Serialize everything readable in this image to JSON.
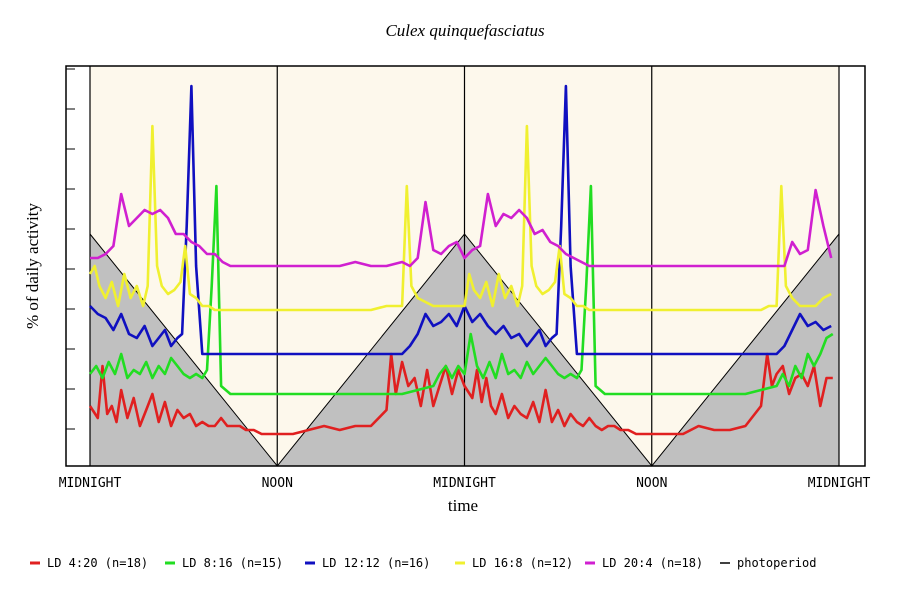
{
  "chart_data": {
    "type": "line",
    "title": "Culex quinquefasciatus",
    "xlabel": "time",
    "ylabel": "% of daily activity",
    "x_tick_labels": [
      "MIDNIGHT",
      "NOON",
      "MIDNIGHT",
      "NOON",
      "MIDNIGHT"
    ],
    "x_ticks": [
      0,
      12,
      24,
      36,
      48
    ],
    "xlim": [
      0,
      48
    ],
    "ylim": [
      0,
      10
    ],
    "y_tick_count": 10,
    "grid": false,
    "legend_position": "bottom",
    "colors": {
      "photophase": "#fdf8ec",
      "scotophase": "#c0c0c0",
      "plot_outer": "#ffffff"
    },
    "photoperiod": {
      "name": "photoperiod",
      "color": "#000000",
      "x": [
        0,
        12,
        24,
        36,
        48
      ],
      "values": [
        5.8,
        0,
        5.8,
        0,
        5.8
      ]
    },
    "series": [
      {
        "name": "LD 4:20 (n=18)",
        "color": "#e02020",
        "x": [
          0,
          0.5,
          0.8,
          1.1,
          1.4,
          1.7,
          2,
          2.4,
          2.8,
          3.2,
          3.6,
          4,
          4.4,
          4.8,
          5.2,
          5.6,
          6,
          6.4,
          6.8,
          7.2,
          7.6,
          8,
          8.4,
          8.8,
          9.2,
          9.6,
          10,
          10.5,
          11,
          11.5,
          12,
          12.5,
          13,
          14,
          15,
          16,
          17,
          18,
          19,
          19.3,
          19.6,
          20,
          20.4,
          20.8,
          21.2,
          21.6,
          22,
          22.4,
          22.8,
          23.2,
          23.6,
          24,
          24.5,
          24.8,
          25.1,
          25.4,
          25.7,
          26,
          26.4,
          26.8,
          27.2,
          27.6,
          28,
          28.4,
          28.8,
          29.2,
          29.6,
          30,
          30.4,
          30.8,
          31.2,
          31.6,
          32,
          32.4,
          32.8,
          33.2,
          33.6,
          34,
          34.5,
          35,
          35.5,
          36,
          37,
          38,
          39,
          40,
          41,
          42,
          43,
          43.4,
          43.7,
          44,
          44.4,
          44.8,
          45.2,
          45.6,
          46,
          46.4,
          46.8,
          47.2,
          47.6
        ],
        "values": [
          1.5,
          1.2,
          2.5,
          1.3,
          1.5,
          1.1,
          1.9,
          1.2,
          1.7,
          1.0,
          1.4,
          1.8,
          1.1,
          1.6,
          1.0,
          1.4,
          1.2,
          1.3,
          1.0,
          1.1,
          1.0,
          1.0,
          1.2,
          1.0,
          1.0,
          1.0,
          0.9,
          0.9,
          0.8,
          0.8,
          0.8,
          0.8,
          0.8,
          0.9,
          1.0,
          0.9,
          1.0,
          1.0,
          1.4,
          2.8,
          1.8,
          2.6,
          2.0,
          2.2,
          1.5,
          2.4,
          1.5,
          2.0,
          2.5,
          1.8,
          2.4,
          2.0,
          1.7,
          2.4,
          1.6,
          2.2,
          1.5,
          1.3,
          1.8,
          1.2,
          1.5,
          1.3,
          1.2,
          1.6,
          1.1,
          1.9,
          1.1,
          1.4,
          1.0,
          1.3,
          1.1,
          1.0,
          1.2,
          1.0,
          0.9,
          1.0,
          1.0,
          0.9,
          0.9,
          0.8,
          0.8,
          0.8,
          0.8,
          0.8,
          1.0,
          0.9,
          0.9,
          1.0,
          1.5,
          2.8,
          2.0,
          2.3,
          2.5,
          1.8,
          2.2,
          2.3,
          2.0,
          2.5,
          1.5,
          2.2,
          2.2
        ]
      },
      {
        "name": "LD 8:16 (n=15)",
        "color": "#22dd22",
        "x": [
          0,
          0.4,
          0.8,
          1.2,
          1.6,
          2,
          2.4,
          2.8,
          3.2,
          3.6,
          4,
          4.4,
          4.8,
          5.2,
          5.6,
          6,
          6.4,
          6.8,
          7.2,
          7.5,
          7.8,
          8.1,
          8.4,
          9,
          10,
          11,
          12,
          13,
          14,
          15,
          16,
          17,
          18,
          19,
          20,
          21,
          22,
          22.4,
          22.8,
          23.2,
          23.6,
          24,
          24.4,
          24.8,
          25.2,
          25.6,
          26,
          26.4,
          26.8,
          27.2,
          27.6,
          28,
          28.4,
          28.8,
          29.2,
          29.6,
          30,
          30.4,
          30.8,
          31.2,
          31.5,
          31.8,
          32.1,
          32.4,
          33,
          34,
          35,
          36,
          37,
          38,
          39,
          40,
          41,
          42,
          43,
          44,
          44.4,
          44.8,
          45.2,
          45.6,
          46,
          46.4,
          46.8,
          47.2,
          47.6
        ],
        "values": [
          2.3,
          2.5,
          2.2,
          2.6,
          2.3,
          2.8,
          2.2,
          2.4,
          2.3,
          2.6,
          2.2,
          2.5,
          2.3,
          2.7,
          2.5,
          2.3,
          2.2,
          2.3,
          2.2,
          2.4,
          4.5,
          7.0,
          2.0,
          1.8,
          1.8,
          1.8,
          1.8,
          1.8,
          1.8,
          1.8,
          1.8,
          1.8,
          1.8,
          1.8,
          1.8,
          1.9,
          2.0,
          2.3,
          2.5,
          2.2,
          2.5,
          2.3,
          3.3,
          2.5,
          2.2,
          2.6,
          2.2,
          2.8,
          2.3,
          2.4,
          2.2,
          2.6,
          2.3,
          2.5,
          2.7,
          2.5,
          2.3,
          2.2,
          2.3,
          2.2,
          2.4,
          4.5,
          7.0,
          2.0,
          1.8,
          1.8,
          1.8,
          1.8,
          1.8,
          1.8,
          1.8,
          1.8,
          1.8,
          1.8,
          1.9,
          2.0,
          2.3,
          2.0,
          2.5,
          2.2,
          2.8,
          2.5,
          2.8,
          3.2,
          3.3
        ]
      },
      {
        "name": "LD 12:12 (n=16)",
        "color": "#1010c0",
        "x": [
          0,
          0.5,
          1,
          1.5,
          2,
          2.5,
          3,
          3.5,
          4,
          4.4,
          4.8,
          5.2,
          5.6,
          5.9,
          6.2,
          6.5,
          6.8,
          7.2,
          8,
          9,
          10,
          11,
          12,
          13,
          14,
          15,
          16,
          17,
          18,
          19,
          20,
          20.5,
          21,
          21.5,
          22,
          22.5,
          23,
          23.5,
          24,
          24.5,
          25,
          25.5,
          26,
          26.5,
          27,
          27.5,
          28,
          28.4,
          28.8,
          29.2,
          29.6,
          29.9,
          30.2,
          30.5,
          30.8,
          31.2,
          32,
          33,
          34,
          35,
          36,
          37,
          38,
          39,
          40,
          41,
          42,
          42.5,
          43,
          43.5,
          44,
          44.5,
          45,
          45.5,
          46,
          46.5,
          47,
          47.5
        ],
        "values": [
          4.0,
          3.8,
          3.7,
          3.4,
          3.8,
          3.3,
          3.2,
          3.5,
          3.0,
          3.2,
          3.4,
          3.0,
          3.2,
          3.3,
          6.0,
          9.5,
          5.0,
          2.8,
          2.8,
          2.8,
          2.8,
          2.8,
          2.8,
          2.8,
          2.8,
          2.8,
          2.8,
          2.8,
          2.8,
          2.8,
          2.8,
          3.0,
          3.3,
          3.8,
          3.5,
          3.6,
          3.8,
          3.5,
          4.0,
          3.6,
          3.8,
          3.5,
          3.3,
          3.5,
          3.2,
          3.3,
          3.0,
          3.2,
          3.4,
          3.0,
          3.2,
          3.3,
          6.0,
          9.5,
          5.0,
          2.8,
          2.8,
          2.8,
          2.8,
          2.8,
          2.8,
          2.8,
          2.8,
          2.8,
          2.8,
          2.8,
          2.8,
          2.8,
          2.8,
          2.8,
          2.8,
          3.0,
          3.4,
          3.8,
          3.5,
          3.6,
          3.4,
          3.5
        ]
      },
      {
        "name": "LD 16:8 (n=12)",
        "color": "#f0f030",
        "x": [
          0,
          0.3,
          0.6,
          1,
          1.4,
          1.8,
          2.2,
          2.6,
          3,
          3.4,
          3.7,
          4,
          4.3,
          4.6,
          5,
          5.4,
          5.8,
          6.1,
          6.4,
          6.8,
          7.2,
          7.6,
          8,
          9,
          10,
          11,
          12,
          13,
          14,
          15,
          16,
          17,
          18,
          19,
          19.5,
          20,
          20.3,
          20.6,
          21,
          22,
          23,
          24,
          24.3,
          24.6,
          25,
          25.4,
          25.8,
          26.2,
          26.6,
          27,
          27.4,
          27.7,
          28,
          28.3,
          28.6,
          29,
          29.4,
          29.8,
          30.1,
          30.4,
          30.8,
          31.2,
          31.6,
          32,
          33,
          34,
          35,
          36,
          37,
          38,
          39,
          40,
          41,
          42,
          43,
          43.5,
          44,
          44.3,
          44.6,
          45,
          45.5,
          46,
          46.5,
          47,
          47.5
        ],
        "values": [
          4.8,
          5.0,
          4.5,
          4.2,
          4.6,
          4.0,
          4.8,
          4.2,
          4.5,
          4.0,
          4.5,
          8.5,
          5.0,
          4.5,
          4.3,
          4.4,
          4.6,
          5.5,
          4.3,
          4.2,
          4.0,
          4.0,
          3.9,
          3.9,
          3.9,
          3.9,
          3.9,
          3.9,
          3.9,
          3.9,
          3.9,
          3.9,
          3.9,
          4.0,
          4.0,
          4.0,
          7.0,
          4.5,
          4.2,
          4.0,
          4.0,
          4.0,
          4.8,
          4.4,
          4.2,
          4.6,
          4.0,
          4.8,
          4.2,
          4.5,
          4.0,
          4.5,
          8.5,
          5.0,
          4.5,
          4.3,
          4.4,
          4.6,
          5.5,
          4.3,
          4.2,
          4.0,
          4.0,
          3.9,
          3.9,
          3.9,
          3.9,
          3.9,
          3.9,
          3.9,
          3.9,
          3.9,
          3.9,
          3.9,
          3.9,
          4.0,
          4.0,
          7.0,
          4.5,
          4.2,
          4.0,
          4.0,
          4.0,
          4.2,
          4.3
        ]
      },
      {
        "name": "LD 20:4 (n=18)",
        "color": "#d020d0",
        "x": [
          0,
          0.5,
          1,
          1.5,
          2,
          2.5,
          3,
          3.5,
          4,
          4.5,
          5,
          5.5,
          6,
          6.5,
          7,
          7.5,
          8,
          8.5,
          9,
          10,
          11,
          12,
          13,
          14,
          15,
          16,
          17,
          18,
          19,
          20,
          20.5,
          21,
          21.5,
          22,
          22.5,
          23,
          23.5,
          24,
          24.5,
          25,
          25.5,
          26,
          26.5,
          27,
          27.5,
          28,
          28.5,
          29,
          29.5,
          30,
          30.5,
          31,
          31.5,
          32,
          32.5,
          33,
          34,
          35,
          36,
          37,
          38,
          39,
          40,
          41,
          42,
          43,
          44,
          44.5,
          45,
          45.5,
          46,
          46.5,
          47,
          47.5
        ],
        "values": [
          5.2,
          5.2,
          5.3,
          5.5,
          6.8,
          6.0,
          6.2,
          6.4,
          6.3,
          6.4,
          6.2,
          5.8,
          5.8,
          5.6,
          5.5,
          5.3,
          5.3,
          5.1,
          5.0,
          5.0,
          5.0,
          5.0,
          5.0,
          5.0,
          5.0,
          5.0,
          5.1,
          5.0,
          5.0,
          5.1,
          5.0,
          5.2,
          6.6,
          5.4,
          5.3,
          5.5,
          5.6,
          5.2,
          5.4,
          5.5,
          6.8,
          6.0,
          6.3,
          6.2,
          6.4,
          6.2,
          5.8,
          5.9,
          5.6,
          5.5,
          5.3,
          5.2,
          5.1,
          5.0,
          5.0,
          5.0,
          5.0,
          5.0,
          5.0,
          5.0,
          5.0,
          5.0,
          5.0,
          5.0,
          5.0,
          5.0,
          5.0,
          5.0,
          5.6,
          5.3,
          5.4,
          6.9,
          6.0,
          5.2
        ]
      }
    ],
    "legend_photoperiod_label": "photoperiod"
  }
}
